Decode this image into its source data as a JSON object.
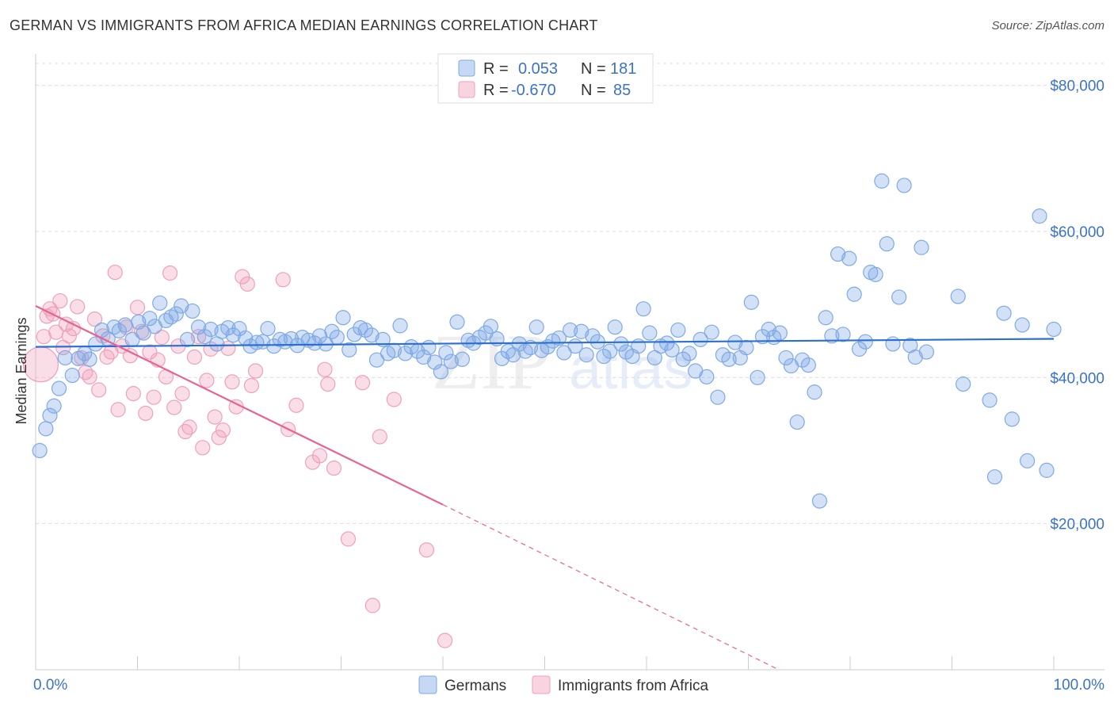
{
  "title": "GERMAN VS IMMIGRANTS FROM AFRICA MEDIAN EARNINGS CORRELATION CHART",
  "source": "Source: ZipAtlas.com",
  "watermark": {
    "zip": "ZIP",
    "atlas": "atlas"
  },
  "chart_data": {
    "type": "scatter",
    "ylabel": "Median Earnings",
    "xlim": [
      0,
      100
    ],
    "ylim": [
      0,
      83000
    ],
    "x_tick_labels": {
      "min": "0.0%",
      "max": "100.0%"
    },
    "y_ticks": [
      {
        "value": 20000,
        "label": "$20,000"
      },
      {
        "value": 40000,
        "label": "$40,000"
      },
      {
        "value": 60000,
        "label": "$60,000"
      },
      {
        "value": 80000,
        "label": "$80,000"
      }
    ],
    "legend": [
      {
        "r_label": "R =",
        "r_value": "0.053",
        "n_label": "N =",
        "n_value": "181",
        "color": "#7faae6"
      },
      {
        "r_label": "R =",
        "r_value": "-0.670",
        "n_label": "N =",
        "n_value": "85",
        "color": "#f0a0bb"
      }
    ],
    "series": [
      {
        "name": "Germans",
        "color": "#7faae6",
        "fill": "rgba(127,170,230,0.35)",
        "line_color": "#2a6fd1",
        "trend": {
          "x0": 0,
          "y0": 44200,
          "x1": 100,
          "y1": 45300,
          "dash_to": null
        },
        "points": [
          [
            0.4,
            30000
          ],
          [
            1,
            33000
          ],
          [
            1.4,
            34800
          ],
          [
            1.8,
            36100
          ],
          [
            2.3,
            38500
          ],
          [
            2.9,
            42700
          ],
          [
            3.6,
            40300
          ],
          [
            4.2,
            42600
          ],
          [
            4.8,
            43300
          ],
          [
            5.3,
            42500
          ],
          [
            5.9,
            44600
          ],
          [
            6.5,
            46500
          ],
          [
            7.1,
            45300
          ],
          [
            7.7,
            46900
          ],
          [
            8.2,
            46400
          ],
          [
            8.8,
            47200
          ],
          [
            9.5,
            45200
          ],
          [
            10.1,
            47600
          ],
          [
            10.6,
            46100
          ],
          [
            11.2,
            48100
          ],
          [
            11.7,
            47000
          ],
          [
            12.2,
            50200
          ],
          [
            12.8,
            47800
          ],
          [
            13.3,
            48300
          ],
          [
            13.8,
            48700
          ],
          [
            14.3,
            49800
          ],
          [
            14.9,
            45200
          ],
          [
            15.4,
            49100
          ],
          [
            16,
            46900
          ],
          [
            16.6,
            45600
          ],
          [
            17.2,
            46600
          ],
          [
            17.8,
            44600
          ],
          [
            18.3,
            46300
          ],
          [
            18.9,
            46800
          ],
          [
            19.4,
            45800
          ],
          [
            20,
            46700
          ],
          [
            20.6,
            45400
          ],
          [
            21.1,
            44300
          ],
          [
            21.7,
            44800
          ],
          [
            22.3,
            44900
          ],
          [
            22.8,
            46700
          ],
          [
            23.4,
            44300
          ],
          [
            24,
            45200
          ],
          [
            24.5,
            44900
          ],
          [
            25.1,
            45300
          ],
          [
            25.7,
            44400
          ],
          [
            26.2,
            45500
          ],
          [
            26.8,
            45100
          ],
          [
            27.4,
            44700
          ],
          [
            27.9,
            45700
          ],
          [
            28.5,
            44600
          ],
          [
            29.1,
            46300
          ],
          [
            29.6,
            45500
          ],
          [
            30.2,
            48200
          ],
          [
            30.8,
            43800
          ],
          [
            31.3,
            45900
          ],
          [
            31.9,
            46800
          ],
          [
            32.4,
            46500
          ],
          [
            33,
            45800
          ],
          [
            33.5,
            42400
          ],
          [
            34.1,
            45200
          ],
          [
            34.6,
            43300
          ],
          [
            35.2,
            43700
          ],
          [
            35.8,
            47100
          ],
          [
            36.3,
            43300
          ],
          [
            36.9,
            44200
          ],
          [
            37.5,
            43600
          ],
          [
            38.1,
            42800
          ],
          [
            38.6,
            44100
          ],
          [
            39.2,
            42100
          ],
          [
            39.8,
            40800
          ],
          [
            40.3,
            43400
          ],
          [
            40.8,
            42200
          ],
          [
            41.4,
            47600
          ],
          [
            41.9,
            42500
          ],
          [
            42.5,
            45100
          ],
          [
            43,
            44700
          ],
          [
            43.6,
            45500
          ],
          [
            44.2,
            46100
          ],
          [
            44.7,
            47000
          ],
          [
            45.3,
            45300
          ],
          [
            45.8,
            42600
          ],
          [
            46.4,
            43600
          ],
          [
            46.9,
            43100
          ],
          [
            47.5,
            44600
          ],
          [
            48.1,
            43600
          ],
          [
            48.6,
            44100
          ],
          [
            49.2,
            46900
          ],
          [
            49.7,
            43700
          ],
          [
            50.3,
            44200
          ],
          [
            50.8,
            45000
          ],
          [
            51.4,
            45400
          ],
          [
            51.9,
            43400
          ],
          [
            52.5,
            46500
          ],
          [
            53,
            44300
          ],
          [
            53.6,
            46300
          ],
          [
            54.1,
            43100
          ],
          [
            54.7,
            45700
          ],
          [
            55.2,
            44900
          ],
          [
            55.8,
            42900
          ],
          [
            56.4,
            43600
          ],
          [
            56.9,
            46900
          ],
          [
            57.5,
            44600
          ],
          [
            58,
            43500
          ],
          [
            58.6,
            42900
          ],
          [
            59.2,
            44300
          ],
          [
            59.7,
            49400
          ],
          [
            60.3,
            46100
          ],
          [
            60.8,
            42700
          ],
          [
            61.4,
            44300
          ],
          [
            62,
            44700
          ],
          [
            62.5,
            43800
          ],
          [
            63.1,
            46500
          ],
          [
            63.6,
            42500
          ],
          [
            64.2,
            43300
          ],
          [
            64.8,
            40900
          ],
          [
            65.3,
            45200
          ],
          [
            65.9,
            40100
          ],
          [
            66.4,
            46200
          ],
          [
            67,
            37300
          ],
          [
            67.5,
            43100
          ],
          [
            68.1,
            42500
          ],
          [
            68.7,
            44800
          ],
          [
            69.2,
            42700
          ],
          [
            69.8,
            44100
          ],
          [
            70.3,
            50300
          ],
          [
            70.9,
            40000
          ],
          [
            71.4,
            45600
          ],
          [
            72,
            46600
          ],
          [
            72.5,
            45500
          ],
          [
            73.1,
            46100
          ],
          [
            73.7,
            42700
          ],
          [
            74.2,
            41600
          ],
          [
            74.8,
            33900
          ],
          [
            75.3,
            42400
          ],
          [
            75.9,
            41700
          ],
          [
            76.5,
            38000
          ],
          [
            77,
            23100
          ],
          [
            77.6,
            48200
          ],
          [
            78.2,
            45700
          ],
          [
            78.8,
            56900
          ],
          [
            79.3,
            45900
          ],
          [
            79.9,
            56300
          ],
          [
            80.4,
            51400
          ],
          [
            80.9,
            43900
          ],
          [
            81.5,
            44900
          ],
          [
            82,
            54400
          ],
          [
            82.5,
            54100
          ],
          [
            83.1,
            66900
          ],
          [
            83.6,
            58300
          ],
          [
            84.2,
            44600
          ],
          [
            84.8,
            51000
          ],
          [
            85.3,
            66300
          ],
          [
            85.9,
            44400
          ],
          [
            86.4,
            42800
          ],
          [
            87,
            57800
          ],
          [
            87.5,
            43500
          ],
          [
            90.6,
            51100
          ],
          [
            91.1,
            39100
          ],
          [
            93.7,
            36900
          ],
          [
            94.2,
            26400
          ],
          [
            95.1,
            48800
          ],
          [
            95.9,
            34300
          ],
          [
            96.9,
            47200
          ],
          [
            97.4,
            28600
          ],
          [
            98.6,
            62100
          ],
          [
            99.3,
            27300
          ],
          [
            100,
            46600
          ]
        ]
      },
      {
        "name": "Immigrants from Africa",
        "color": "#f0a0bb",
        "fill": "rgba(240,160,187,0.35)",
        "line_color": "#e8638f",
        "trend": {
          "x0": 0,
          "y0": 49800,
          "x1": 40,
          "y1": 22600,
          "dash_to": {
            "x": 73,
            "y": 0
          }
        },
        "points": [
          [
            0.5,
            41800
          ],
          [
            0.8,
            45600
          ],
          [
            1.1,
            48400
          ],
          [
            1.4,
            49400
          ],
          [
            1.7,
            48700
          ],
          [
            2,
            46200
          ],
          [
            2.4,
            50500
          ],
          [
            2.7,
            44100
          ],
          [
            3,
            47300
          ],
          [
            3.3,
            45700
          ],
          [
            3.7,
            46700
          ],
          [
            4.1,
            49700
          ],
          [
            4.5,
            42700
          ],
          [
            4.9,
            40700
          ],
          [
            5.3,
            40100
          ],
          [
            5.8,
            48000
          ],
          [
            6.2,
            38300
          ],
          [
            6.6,
            45700
          ],
          [
            7,
            42800
          ],
          [
            7.4,
            43500
          ],
          [
            7.8,
            54400
          ],
          [
            8.1,
            35600
          ],
          [
            8.5,
            44300
          ],
          [
            8.9,
            46900
          ],
          [
            9.3,
            43000
          ],
          [
            9.6,
            37800
          ],
          [
            10,
            49600
          ],
          [
            10.4,
            46300
          ],
          [
            10.8,
            35100
          ],
          [
            11.2,
            43500
          ],
          [
            11.6,
            37300
          ],
          [
            12,
            42400
          ],
          [
            12.4,
            45500
          ],
          [
            12.8,
            40100
          ],
          [
            13.2,
            54300
          ],
          [
            13.6,
            35900
          ],
          [
            14,
            44300
          ],
          [
            14.4,
            37800
          ],
          [
            14.7,
            32600
          ],
          [
            15.1,
            33200
          ],
          [
            15.6,
            42800
          ],
          [
            16,
            45600
          ],
          [
            16.4,
            30400
          ],
          [
            16.8,
            39600
          ],
          [
            17.2,
            43900
          ],
          [
            17.6,
            34600
          ],
          [
            18,
            31800
          ],
          [
            18.4,
            32800
          ],
          [
            18.9,
            44000
          ],
          [
            19.3,
            39400
          ],
          [
            19.7,
            36000
          ],
          [
            20.3,
            53800
          ],
          [
            20.8,
            52800
          ],
          [
            21.2,
            38900
          ],
          [
            21.6,
            40900
          ],
          [
            24.3,
            53400
          ],
          [
            24.8,
            32900
          ],
          [
            25.6,
            36200
          ],
          [
            27.2,
            28400
          ],
          [
            27.9,
            29300
          ],
          [
            28.4,
            41100
          ],
          [
            28.7,
            39100
          ],
          [
            29.3,
            27600
          ],
          [
            30.7,
            17900
          ],
          [
            32.1,
            39300
          ],
          [
            33.1,
            8800
          ],
          [
            33.8,
            31900
          ],
          [
            35.2,
            37000
          ],
          [
            38.4,
            16400
          ],
          [
            40.2,
            4000
          ]
        ]
      }
    ]
  }
}
